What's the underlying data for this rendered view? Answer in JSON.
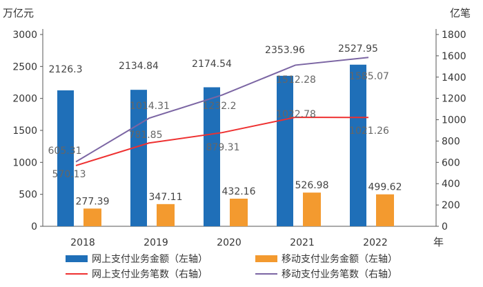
{
  "chart_data": {
    "type": "bar",
    "categories": [
      "2018",
      "2019",
      "2020",
      "2021",
      "2022"
    ],
    "x_unit": "年",
    "left_axis": {
      "unit": "万亿元",
      "range": [
        0,
        3000
      ],
      "ticks": [
        0,
        500,
        1000,
        1500,
        2000,
        2500,
        3000
      ]
    },
    "right_axis": {
      "unit": "亿笔",
      "range": [
        0,
        1800
      ],
      "ticks": [
        0,
        200,
        400,
        600,
        800,
        1000,
        1200,
        1400,
        1600,
        1800
      ]
    },
    "series": [
      {
        "name": "网上支付业务金额（左轴）",
        "type": "bar",
        "axis": "left",
        "color": "#1f6fb8",
        "values": [
          2126.3,
          2134.84,
          2174.54,
          2353.96,
          2527.95
        ]
      },
      {
        "name": "移动支付业务金额（左轴）",
        "type": "bar",
        "axis": "left",
        "color": "#f39a2f",
        "values": [
          277.39,
          347.11,
          432.16,
          526.98,
          499.62
        ]
      },
      {
        "name": "网上支付业务笔数（右轴）",
        "type": "line",
        "axis": "right",
        "color": "#ee3030",
        "values": [
          570.13,
          781.85,
          879.31,
          1022.78,
          1021.26
        ]
      },
      {
        "name": "移动支付业务笔数（右轴）",
        "type": "line",
        "axis": "right",
        "color": "#7b65a3",
        "values": [
          605.31,
          1014.31,
          1232.2,
          1512.28,
          1585.07
        ]
      }
    ],
    "grid": false,
    "legend": "bottom"
  }
}
